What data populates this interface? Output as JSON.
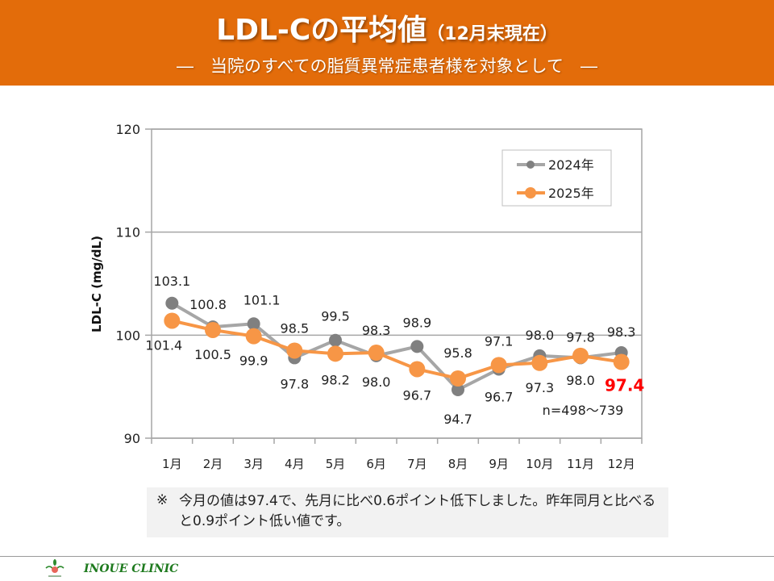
{
  "header": {
    "title_main": "LDL-Cの平均値",
    "title_sub": "（12月末現在）",
    "subtitle": "―　当院のすべての脂質異常症患者様を対象として　―"
  },
  "colors": {
    "header_bg": "#E36C0A",
    "series_2024": "#808080",
    "series_2024_line": "#A6A6A6",
    "series_2025": "#F79646",
    "highlight": "#FF0000"
  },
  "chart_data": {
    "type": "line",
    "title": "",
    "xlabel": "",
    "ylabel": "LDL-C (mg/dL)",
    "ylim": [
      90,
      120
    ],
    "yticks": [
      90,
      100,
      110,
      120
    ],
    "grid": true,
    "legend_position": "top-right",
    "categories": [
      "1月",
      "2月",
      "3月",
      "4月",
      "5月",
      "6月",
      "7月",
      "8月",
      "9月",
      "10月",
      "11月",
      "12月"
    ],
    "series": [
      {
        "name": "2024年",
        "values": [
          103.1,
          100.8,
          101.1,
          97.8,
          99.5,
          98.0,
          98.9,
          94.7,
          96.7,
          98.0,
          97.8,
          98.3
        ],
        "labels": [
          "103.1",
          "100.8",
          "101.1",
          "97.8",
          "99.5",
          "98.0",
          "98.9",
          "94.7",
          "96.7",
          "98.0",
          "97.8",
          "98.3"
        ]
      },
      {
        "name": "2025年",
        "values": [
          101.4,
          100.5,
          99.9,
          98.5,
          98.2,
          98.3,
          96.7,
          95.8,
          97.1,
          97.3,
          98.0,
          97.4
        ],
        "labels": [
          "101.4",
          "100.5",
          "99.9",
          "98.5",
          "98.2",
          "98.3",
          "96.7",
          "95.8",
          "97.1",
          "97.3",
          "98.0",
          "97.4"
        ]
      }
    ],
    "annotation": "n=498～739",
    "highlight_label": "97.4"
  },
  "note": {
    "mark": "※",
    "text": "今月の値は97.4で、先月に比べ0.6ポイント低下しました。昨年同月と比べると0.9ポイント低い値です。"
  },
  "footer": {
    "clinic_name": "INOUE CLINIC"
  }
}
